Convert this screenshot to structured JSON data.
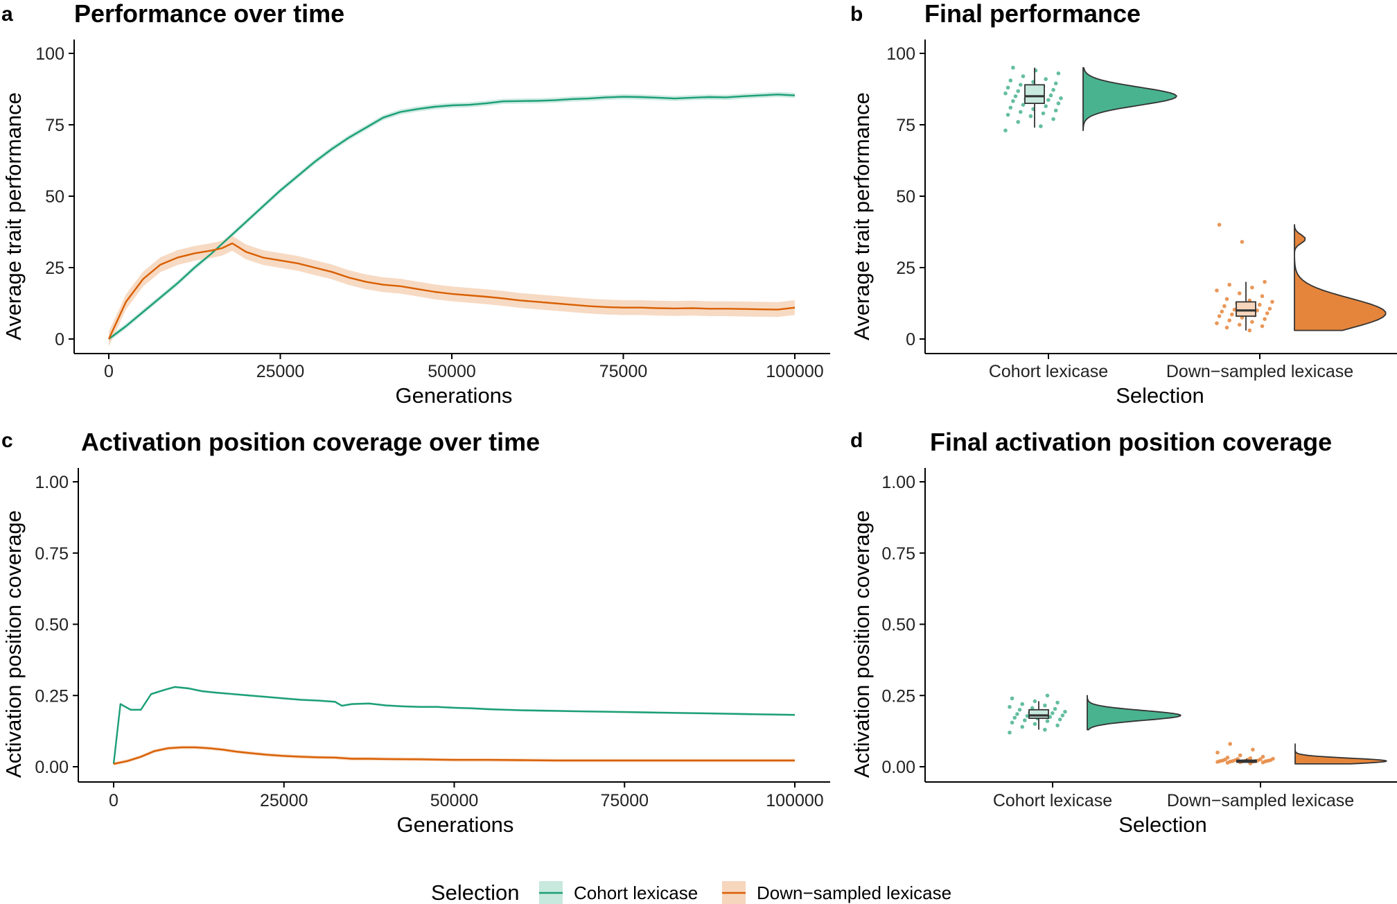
{
  "colors": {
    "cohort": "#1b9e77",
    "cohort_fill": "#49b38f",
    "cohort_band": "#c8e9dd",
    "down": "#d95f02",
    "down_fill": "#e5853b",
    "down_band": "#f6d6bd",
    "axis": "#000000",
    "box": "#333333"
  },
  "legend": {
    "title": "Selection",
    "items": [
      "Cohort lexicase",
      "Down−sampled lexicase"
    ]
  },
  "chart_data": [
    {
      "id": "a",
      "tag": "a",
      "type": "line",
      "title": "Performance over time",
      "xlabel": "Generations",
      "ylabel": "Average trait performance",
      "xlim": [
        0,
        100000
      ],
      "ylim": [
        0,
        100
      ],
      "xticks": [
        0,
        25000,
        50000,
        75000,
        100000
      ],
      "xtick_labels": [
        "0",
        "25000",
        "50000",
        "75000",
        "100000"
      ],
      "yticks": [
        0,
        25,
        50,
        75,
        100
      ],
      "ytick_labels": [
        "0",
        "25",
        "50",
        "75",
        "100"
      ],
      "grid": false,
      "series": [
        {
          "name": "Cohort lexicase",
          "x": [
            0,
            2500,
            5000,
            7500,
            10000,
            12500,
            15000,
            17500,
            20000,
            22500,
            25000,
            27500,
            30000,
            32500,
            35000,
            37500,
            40000,
            42500,
            45000,
            47500,
            50000,
            52500,
            55000,
            57500,
            60000,
            62500,
            65000,
            67500,
            70000,
            72500,
            75000,
            77500,
            80000,
            82500,
            85000,
            87500,
            90000,
            92500,
            95000,
            97500,
            100000
          ],
          "y": [
            0,
            4.5,
            9.5,
            14.5,
            19.5,
            25,
            30,
            35.5,
            41,
            46.5,
            52,
            57,
            62,
            66.5,
            70.5,
            74,
            77.5,
            79.5,
            80.5,
            81.3,
            81.8,
            82,
            82.5,
            83.2,
            83.3,
            83.4,
            83.6,
            84,
            84.2,
            84.6,
            84.8,
            84.7,
            84.5,
            84.2,
            84.5,
            84.7,
            84.6,
            85,
            85.3,
            85.6,
            85.3
          ],
          "band": 0.9
        },
        {
          "name": "Down−sampled lexicase",
          "x": [
            0,
            2500,
            5000,
            7500,
            10000,
            12500,
            15000,
            16500,
            18000,
            20000,
            22500,
            25000,
            27500,
            30000,
            32500,
            35000,
            37500,
            40000,
            42500,
            45000,
            47500,
            50000,
            52500,
            55000,
            57500,
            60000,
            62500,
            65000,
            67500,
            70000,
            72500,
            75000,
            77500,
            80000,
            82500,
            85000,
            87500,
            90000,
            92500,
            95000,
            97500,
            100000
          ],
          "y": [
            0,
            13,
            21,
            26,
            28.5,
            30,
            31,
            31.8,
            33.5,
            30.5,
            28.5,
            27.5,
            26.5,
            25,
            23.5,
            21.5,
            20,
            19,
            18.5,
            17.5,
            16.5,
            15.8,
            15.3,
            14.8,
            14.2,
            13.5,
            13,
            12.5,
            12,
            11.5,
            11.2,
            11,
            11,
            10.8,
            10.7,
            10.8,
            10.6,
            10.6,
            10.5,
            10.4,
            10.3,
            11
          ],
          "band": 2.6
        }
      ]
    },
    {
      "id": "b",
      "tag": "b",
      "type": "raincloud",
      "title": "Final performance",
      "xlabel": "Selection",
      "ylabel": "Average trait performance",
      "categories": [
        "Cohort lexicase",
        "Down−sampled lexicase"
      ],
      "ylim": [
        0,
        100
      ],
      "yticks": [
        0,
        25,
        50,
        75,
        100
      ],
      "ytick_labels": [
        "0",
        "25",
        "50",
        "75",
        "100"
      ],
      "grid": false,
      "groups": [
        {
          "name": "Cohort lexicase",
          "box": {
            "min": 74,
            "q1": 82.5,
            "median": 85,
            "q3": 89,
            "max": 95
          },
          "density_range": [
            73,
            95
          ],
          "density_peak": 85,
          "points": [
            73,
            74.5,
            76,
            77,
            78,
            78.5,
            79,
            79.5,
            80,
            80.5,
            81,
            81.5,
            82,
            82.5,
            83,
            83.3,
            83.7,
            84,
            84.3,
            84.6,
            85,
            85.3,
            85.6,
            86,
            86.4,
            86.8,
            87.2,
            87.6,
            88,
            88.5,
            89,
            89.5,
            90,
            90.5,
            91,
            92,
            93,
            94,
            95
          ]
        },
        {
          "name": "Down−sampled lexicase",
          "box": {
            "min": 3,
            "q1": 8,
            "median": 10,
            "q3": 13,
            "max": 20
          },
          "density_range": [
            3,
            40
          ],
          "density_peak": 9,
          "points": [
            3,
            4,
            4.5,
            5,
            5.5,
            6,
            6.5,
            7,
            7.5,
            8,
            8.3,
            8.6,
            9,
            9.3,
            9.6,
            10,
            10.3,
            10.6,
            11,
            11.5,
            12,
            12.5,
            13,
            13.5,
            14,
            15,
            16,
            17,
            18,
            19,
            20,
            34,
            40
          ]
        }
      ]
    },
    {
      "id": "c",
      "tag": "c",
      "type": "line",
      "title": "Activation position coverage over time",
      "xlabel": "Generations",
      "ylabel": "Activation position coverage",
      "xlim": [
        0,
        100000
      ],
      "ylim": [
        0,
        1
      ],
      "xticks": [
        0,
        25000,
        50000,
        75000,
        100000
      ],
      "xtick_labels": [
        "0",
        "25000",
        "50000",
        "75000",
        "100000"
      ],
      "yticks": [
        0,
        0.25,
        0.5,
        0.75,
        1
      ],
      "ytick_labels": [
        "0.00",
        "0.25",
        "0.50",
        "0.75",
        "1.00"
      ],
      "grid": false,
      "series": [
        {
          "name": "Cohort lexicase",
          "x": [
            0,
            1000,
            2500,
            4000,
            5500,
            7500,
            9000,
            11000,
            13000,
            15000,
            17500,
            20000,
            22500,
            25000,
            27500,
            30000,
            32500,
            33500,
            35000,
            37500,
            40000,
            42500,
            45000,
            47500,
            50000,
            52500,
            55000,
            57500,
            60000,
            62500,
            65000,
            67500,
            70000,
            72500,
            75000,
            77500,
            80000,
            82500,
            85000,
            87500,
            90000,
            92500,
            95000,
            97500,
            100000
          ],
          "y": [
            0.01,
            0.22,
            0.2,
            0.2,
            0.255,
            0.27,
            0.28,
            0.275,
            0.265,
            0.26,
            0.255,
            0.25,
            0.245,
            0.24,
            0.235,
            0.232,
            0.228,
            0.214,
            0.22,
            0.222,
            0.215,
            0.212,
            0.21,
            0.21,
            0.207,
            0.205,
            0.202,
            0.2,
            0.198,
            0.197,
            0.196,
            0.195,
            0.194,
            0.193,
            0.192,
            0.191,
            0.19,
            0.189,
            0.188,
            0.187,
            0.186,
            0.185,
            0.184,
            0.183,
            0.182
          ],
          "band": 0.004
        },
        {
          "name": "Down−sampled lexicase",
          "x": [
            0,
            2000,
            4000,
            6000,
            8000,
            10000,
            12000,
            14000,
            16000,
            18000,
            20000,
            22500,
            25000,
            27500,
            30000,
            32500,
            35000,
            37500,
            40000,
            45000,
            50000,
            55000,
            60000,
            65000,
            70000,
            75000,
            80000,
            85000,
            90000,
            95000,
            100000
          ],
          "y": [
            0.01,
            0.02,
            0.035,
            0.055,
            0.065,
            0.068,
            0.068,
            0.065,
            0.06,
            0.053,
            0.048,
            0.042,
            0.038,
            0.035,
            0.033,
            0.032,
            0.028,
            0.028,
            0.027,
            0.026,
            0.024,
            0.024,
            0.023,
            0.022,
            0.022,
            0.022,
            0.022,
            0.022,
            0.022,
            0.022,
            0.022
          ],
          "band": 0.006
        }
      ]
    },
    {
      "id": "d",
      "tag": "d",
      "type": "raincloud",
      "title": "Final activation position coverage",
      "xlabel": "Selection",
      "ylabel": "Activation position coverage",
      "categories": [
        "Cohort lexicase",
        "Down−sampled lexicase"
      ],
      "ylim": [
        0,
        1
      ],
      "yticks": [
        0,
        0.25,
        0.5,
        0.75,
        1
      ],
      "ytick_labels": [
        "0.00",
        "0.25",
        "0.50",
        "0.75",
        "1.00"
      ],
      "grid": false,
      "groups": [
        {
          "name": "Cohort lexicase",
          "box": {
            "min": 0.13,
            "q1": 0.17,
            "median": 0.18,
            "q3": 0.2,
            "max": 0.23
          },
          "density_range": [
            0.13,
            0.25
          ],
          "density_peak": 0.18,
          "points": [
            0.12,
            0.13,
            0.14,
            0.145,
            0.15,
            0.155,
            0.16,
            0.163,
            0.166,
            0.17,
            0.172,
            0.175,
            0.178,
            0.18,
            0.182,
            0.185,
            0.188,
            0.19,
            0.193,
            0.196,
            0.2,
            0.203,
            0.206,
            0.21,
            0.215,
            0.22,
            0.225,
            0.23,
            0.24,
            0.25
          ]
        },
        {
          "name": "Down−sampled lexicase",
          "box": {
            "min": 0.015,
            "q1": 0.018,
            "median": 0.02,
            "q3": 0.023,
            "max": 0.028
          },
          "density_range": [
            0.01,
            0.08
          ],
          "density_peak": 0.02,
          "points": [
            0.012,
            0.014,
            0.015,
            0.016,
            0.017,
            0.018,
            0.018,
            0.019,
            0.019,
            0.02,
            0.02,
            0.02,
            0.021,
            0.021,
            0.022,
            0.022,
            0.023,
            0.023,
            0.024,
            0.025,
            0.026,
            0.027,
            0.028,
            0.03,
            0.032,
            0.035,
            0.04,
            0.05,
            0.06,
            0.08
          ]
        }
      ]
    }
  ]
}
